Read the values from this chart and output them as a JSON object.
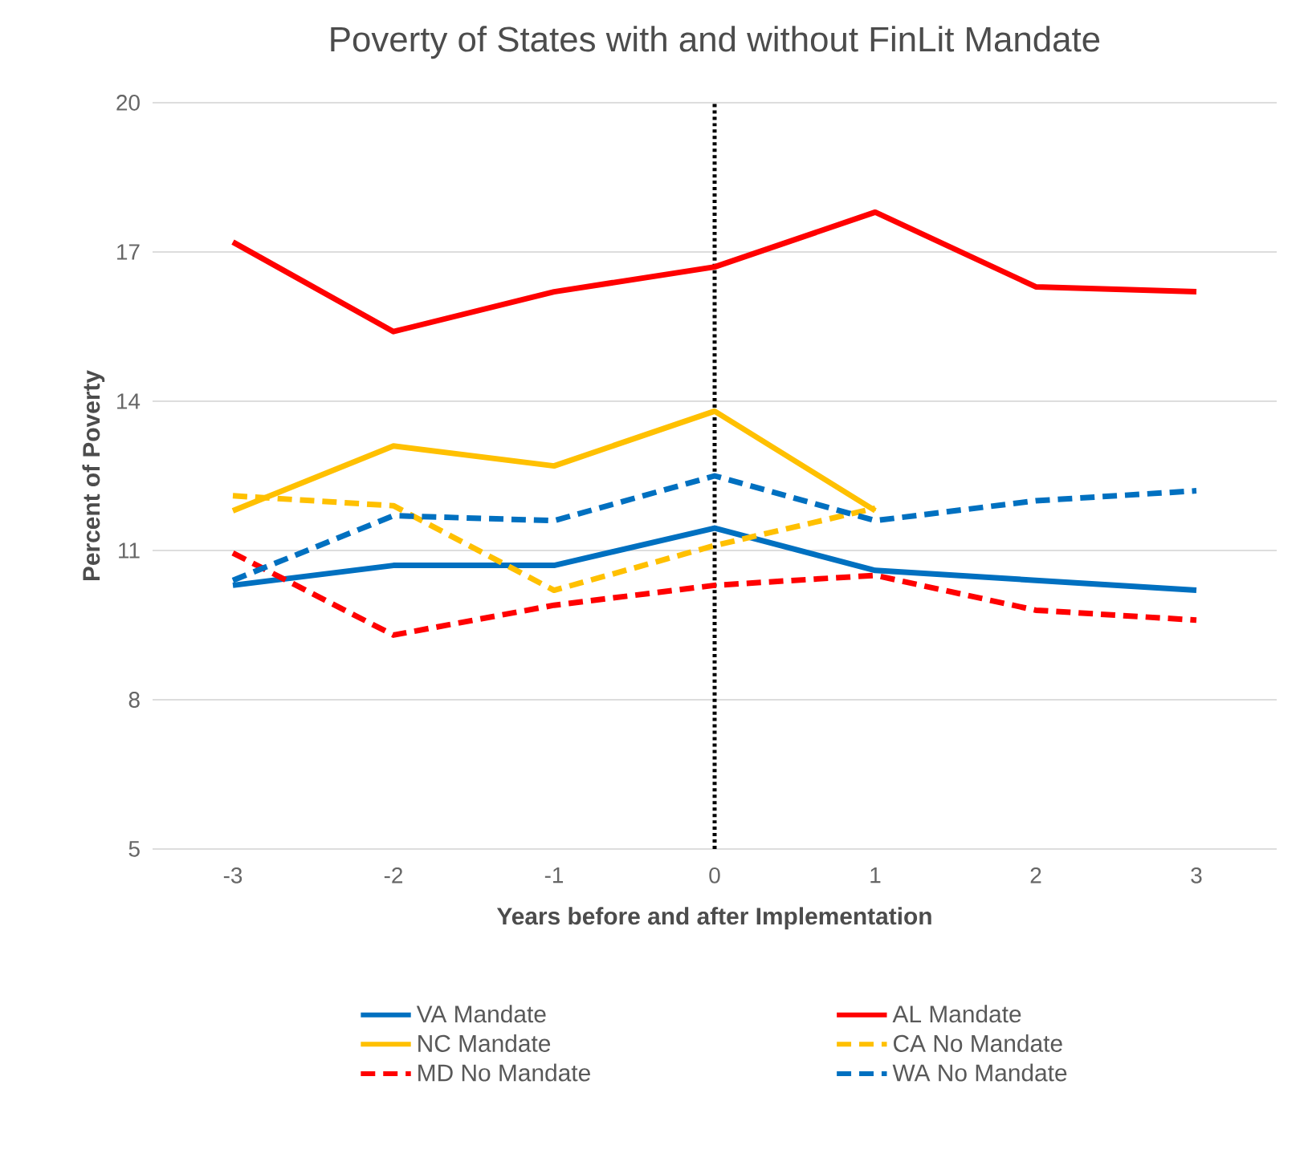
{
  "chart_data": {
    "type": "line",
    "title": "Poverty of States with and without FinLit Mandate",
    "xlabel": "Years before and after Implementation",
    "ylabel": "Percent of Poverty",
    "x": [
      -3,
      -2,
      -1,
      0,
      1,
      2,
      3
    ],
    "xlim": [
      -3.5,
      3.5
    ],
    "xticks": [
      -3,
      -2,
      -1,
      0,
      1,
      2,
      3
    ],
    "ylim": [
      5,
      20
    ],
    "yticks": [
      5,
      8,
      11,
      14,
      17,
      20
    ],
    "grid": "y",
    "legend": "bottom",
    "marker": "none",
    "ref_lines": [
      {
        "axis": "x",
        "value": 0,
        "color": "#000000",
        "line_style": "dotted"
      }
    ],
    "series": [
      {
        "name": "VA Mandate",
        "color": "#0070c0",
        "line_style": "solid",
        "values": [
          10.3,
          10.7,
          10.7,
          11.45,
          10.6,
          10.4,
          10.2
        ]
      },
      {
        "name": "AL Mandate",
        "color": "#ff0000",
        "line_style": "solid",
        "values": [
          17.2,
          15.4,
          16.2,
          16.7,
          17.8,
          16.3,
          16.2
        ]
      },
      {
        "name": "NC Mandate",
        "color": "#ffc000",
        "line_style": "solid",
        "values": [
          11.8,
          13.1,
          12.7,
          13.8,
          11.8,
          null,
          null
        ]
      },
      {
        "name": "CA No Mandate",
        "color": "#ffc000",
        "line_style": "dashed",
        "values": [
          12.1,
          11.9,
          10.2,
          11.1,
          11.85,
          null,
          null
        ]
      },
      {
        "name": "MD No Mandate",
        "color": "#ff0000",
        "line_style": "dashed",
        "values": [
          10.95,
          9.3,
          9.9,
          10.3,
          10.5,
          9.8,
          9.6
        ]
      },
      {
        "name": "WA No Mandate",
        "color": "#0070c0",
        "line_style": "dashed",
        "values": [
          10.4,
          11.7,
          11.6,
          12.5,
          11.6,
          12.0,
          12.2
        ]
      }
    ]
  }
}
